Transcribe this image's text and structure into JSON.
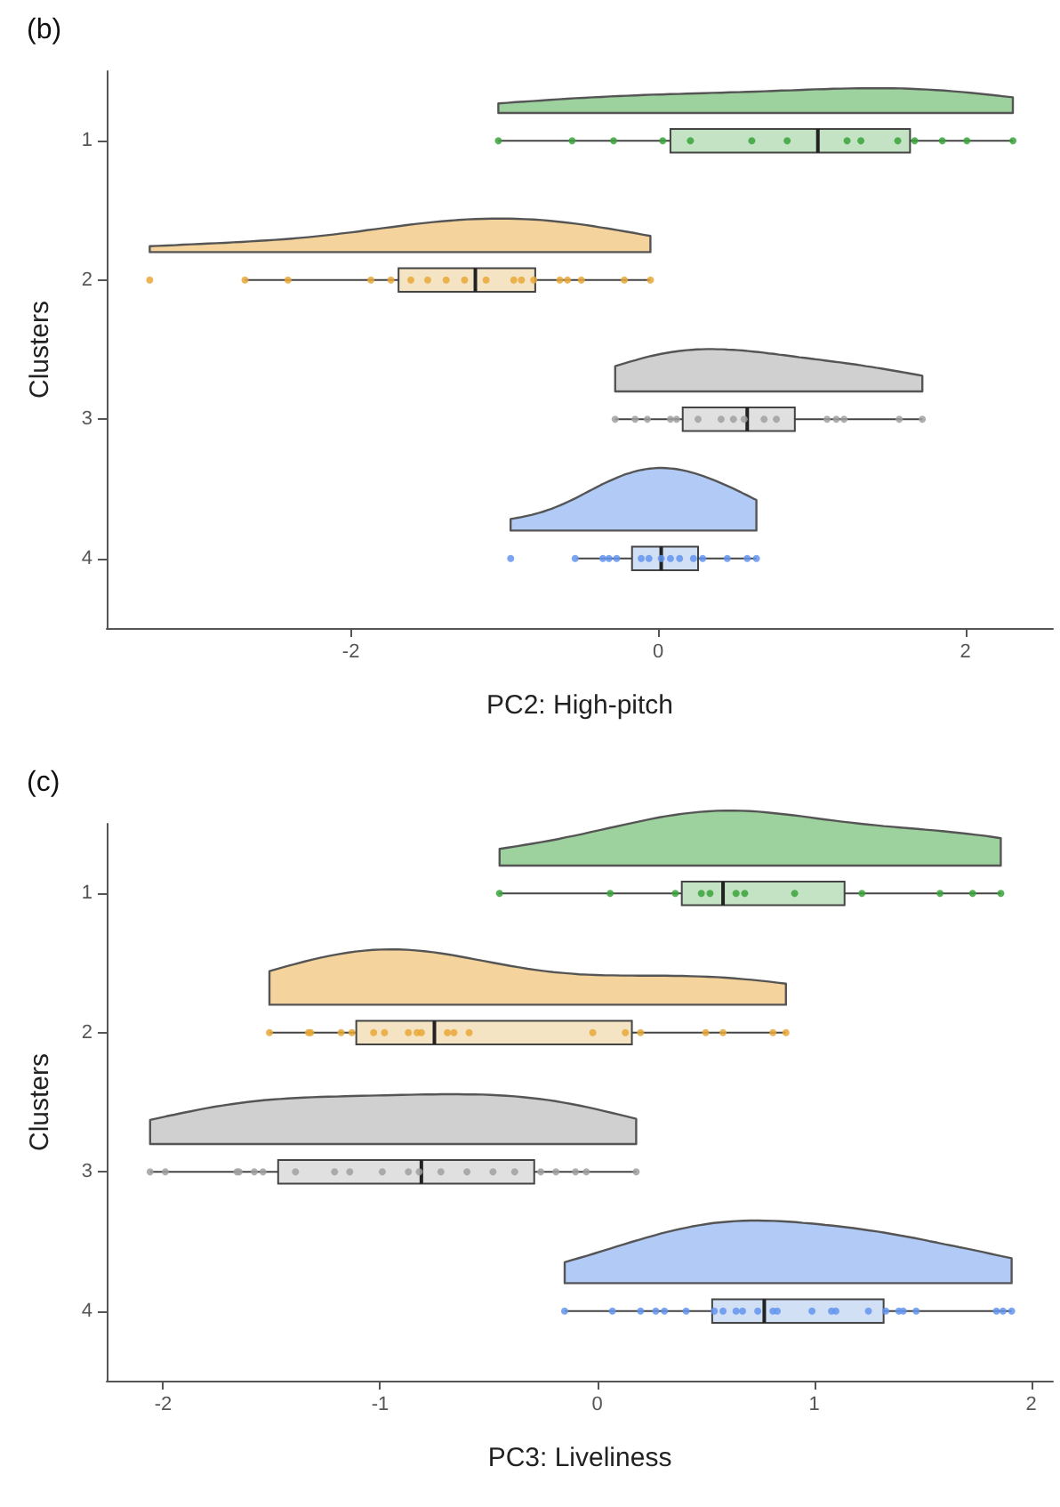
{
  "chart_data": [
    {
      "type": "box",
      "orientation": "horizontal",
      "title": "(b)",
      "xlabel": "PC2: High-pitch",
      "ylabel": "Clusters",
      "categories": [
        "1",
        "2",
        "3",
        "4"
      ],
      "xlim": [
        -3.59,
        2.57
      ],
      "xticks": [
        -2,
        0,
        2
      ],
      "grid": false,
      "colors": [
        "#c4e3c4",
        "#f5e4c3",
        "#e0e0e0",
        "#d2e0f6"
      ],
      "boxes": [
        {
          "low": -1.04,
          "q1": 0.08,
          "median": 1.04,
          "q3": 1.64,
          "high": 2.31
        },
        {
          "low": -2.69,
          "q1": -1.69,
          "median": -1.19,
          "q3": -0.8,
          "high": -0.05
        },
        {
          "low": -0.28,
          "q1": 0.16,
          "median": 0.58,
          "q3": 0.89,
          "high": 1.72
        },
        {
          "low": -0.53,
          "q1": -0.17,
          "median": 0.02,
          "q3": 0.26,
          "high": 0.64
        }
      ],
      "series": [
        {
          "type": "scatter",
          "color": "#3aa33a",
          "x": [
            "1",
            "1",
            "1",
            "1",
            "1",
            "1",
            "1",
            "1",
            "1",
            "1",
            "1",
            "1",
            "1",
            "1"
          ],
          "values": [
            -1.04,
            -0.56,
            -0.29,
            0.03,
            0.21,
            0.61,
            0.84,
            1.23,
            1.32,
            1.56,
            1.67,
            1.85,
            2.01,
            2.31
          ]
        },
        {
          "type": "scatter",
          "color": "#e8a838",
          "x": [
            "2",
            "2",
            "2",
            "2",
            "2",
            "2",
            "2",
            "2",
            "2",
            "2",
            "2",
            "2",
            "2",
            "2",
            "2",
            "2",
            "2",
            "2"
          ],
          "values": [
            -3.31,
            -2.69,
            -2.41,
            -1.87,
            -1.74,
            -1.61,
            -1.5,
            -1.38,
            -1.26,
            -1.12,
            -0.94,
            -0.89,
            -0.81,
            -0.64,
            -0.59,
            -0.5,
            -0.22,
            -0.05
          ]
        },
        {
          "type": "scatter",
          "color": "#a0a0a0",
          "x": [
            "3",
            "3",
            "3",
            "3",
            "3",
            "3",
            "3",
            "3",
            "3",
            "3",
            "3",
            "3",
            "3",
            "3",
            "3",
            "3"
          ],
          "values": [
            -0.28,
            -0.15,
            -0.07,
            0.08,
            0.12,
            0.26,
            0.41,
            0.49,
            0.56,
            0.69,
            0.77,
            1.1,
            1.16,
            1.21,
            1.57,
            1.72
          ]
        },
        {
          "type": "scatter",
          "color": "#6495ed",
          "x": [
            "4",
            "4",
            "4",
            "4",
            "4",
            "4",
            "4",
            "4",
            "4",
            "4",
            "4",
            "4",
            "4",
            "4",
            "4"
          ],
          "values": [
            -0.96,
            -0.54,
            -0.36,
            -0.32,
            -0.27,
            -0.11,
            -0.06,
            0.02,
            0.08,
            0.14,
            0.23,
            0.29,
            0.45,
            0.58,
            0.64
          ]
        }
      ]
    },
    {
      "type": "box",
      "orientation": "horizontal",
      "title": "(c)",
      "xlabel": "PC3: Liveliness",
      "ylabel": "Clusters",
      "categories": [
        "1",
        "2",
        "3",
        "4"
      ],
      "xlim": [
        -2.26,
        2.1
      ],
      "xticks": [
        -2,
        -1,
        0,
        1,
        2
      ],
      "grid": false,
      "colors": [
        "#c4e3c4",
        "#f5e4c3",
        "#e0e0e0",
        "#d2e0f6"
      ],
      "boxes": [
        {
          "low": -0.45,
          "q1": 0.39,
          "median": 0.58,
          "q3": 1.14,
          "high": 1.86
        },
        {
          "low": -1.51,
          "q1": -1.11,
          "median": -0.75,
          "q3": 0.16,
          "high": 0.87
        },
        {
          "low": -2.06,
          "q1": -1.47,
          "median": -0.81,
          "q3": -0.29,
          "high": 0.18
        },
        {
          "low": -0.15,
          "q1": 0.53,
          "median": 0.77,
          "q3": 1.32,
          "high": 1.91
        }
      ],
      "series": [
        {
          "type": "scatter",
          "color": "#3aa33a",
          "x": [
            "1",
            "1",
            "1",
            "1",
            "1",
            "1",
            "1",
            "1",
            "1",
            "1",
            "1",
            "1"
          ],
          "values": [
            -0.45,
            0.06,
            0.36,
            0.48,
            0.52,
            0.64,
            0.68,
            0.91,
            1.22,
            1.58,
            1.73,
            1.86
          ]
        },
        {
          "type": "scatter",
          "color": "#e8a838",
          "x": [
            "2",
            "2",
            "2",
            "2",
            "2",
            "2",
            "2",
            "2",
            "2",
            "2",
            "2",
            "2",
            "2",
            "2",
            "2",
            "2",
            "2",
            "2",
            "2",
            "2"
          ],
          "values": [
            -1.51,
            -1.33,
            -1.32,
            -1.18,
            -1.13,
            -1.03,
            -0.98,
            -0.87,
            -0.83,
            -0.81,
            -0.69,
            -0.66,
            -0.59,
            -0.02,
            0.13,
            0.2,
            0.5,
            0.58,
            0.81,
            0.87
          ]
        },
        {
          "type": "scatter",
          "color": "#a0a0a0",
          "x": [
            "3",
            "3",
            "3",
            "3",
            "3",
            "3",
            "3",
            "3",
            "3",
            "3",
            "3",
            "3",
            "3",
            "3",
            "3",
            "3",
            "3",
            "3",
            "3",
            "3",
            "3"
          ],
          "values": [
            -2.06,
            -1.99,
            -1.66,
            -1.65,
            -1.58,
            -1.54,
            -1.39,
            -1.21,
            -1.14,
            -0.99,
            -0.87,
            -0.82,
            -0.72,
            -0.6,
            -0.48,
            -0.38,
            -0.26,
            -0.19,
            -0.1,
            -0.05,
            0.18
          ]
        },
        {
          "type": "scatter",
          "color": "#6495ed",
          "x": [
            "4",
            "4",
            "4",
            "4",
            "4",
            "4",
            "4",
            "4",
            "4",
            "4",
            "4",
            "4",
            "4",
            "4",
            "4",
            "4",
            "4",
            "4",
            "4",
            "4",
            "4",
            "4",
            "4",
            "4"
          ],
          "values": [
            -0.15,
            0.07,
            0.2,
            0.27,
            0.31,
            0.41,
            0.54,
            0.58,
            0.64,
            0.67,
            0.74,
            0.81,
            0.83,
            0.99,
            1.08,
            1.1,
            1.25,
            1.33,
            1.39,
            1.41,
            1.47,
            1.84,
            1.87,
            1.91
          ]
        }
      ]
    }
  ]
}
